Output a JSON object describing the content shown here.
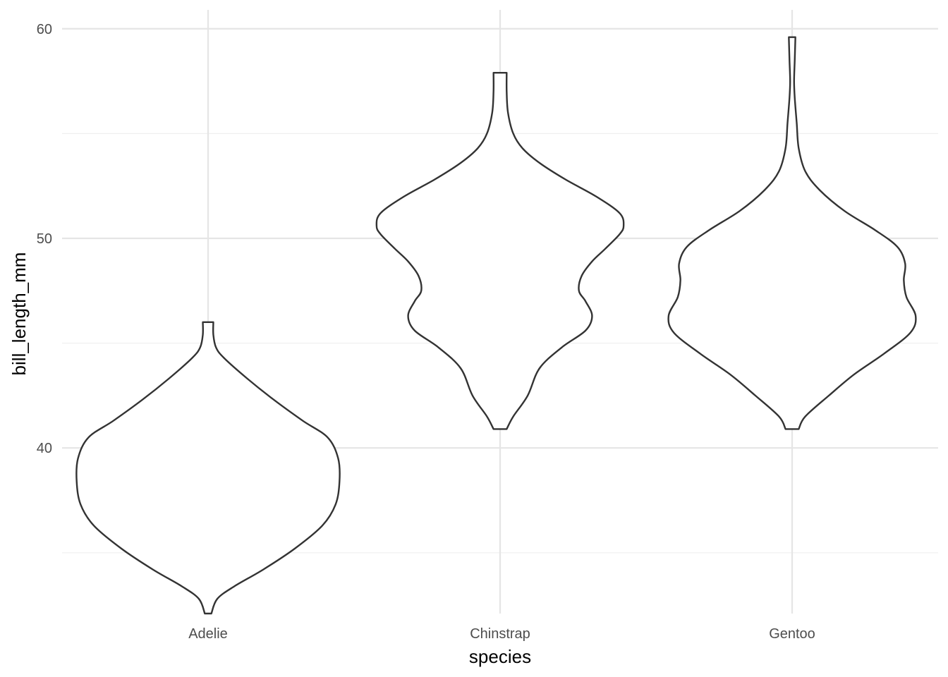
{
  "chart_data": {
    "type": "violin",
    "xlabel": "species",
    "ylabel": "bill_length_mm",
    "categories": [
      "Adelie",
      "Chinstrap",
      "Gentoo"
    ],
    "ylim": [
      32.1,
      60.9
    ],
    "yticks": [
      40,
      50,
      60
    ],
    "grid": true,
    "violins": [
      {
        "category": "Adelie",
        "density": [
          [
            32.1,
            0.025
          ],
          [
            32.8,
            0.07
          ],
          [
            33.4,
            0.2
          ],
          [
            34.2,
            0.42
          ],
          [
            35.2,
            0.66
          ],
          [
            36.3,
            0.87
          ],
          [
            37.3,
            0.97
          ],
          [
            38.4,
            1.0
          ],
          [
            39.5,
            0.99
          ],
          [
            40.5,
            0.91
          ],
          [
            41.3,
            0.72
          ],
          [
            42.3,
            0.5
          ],
          [
            43.3,
            0.3
          ],
          [
            44.3,
            0.12
          ],
          [
            44.8,
            0.06
          ],
          [
            45.4,
            0.04
          ],
          [
            46.0,
            0.04
          ]
        ]
      },
      {
        "category": "Chinstrap",
        "density": [
          [
            40.9,
            0.05
          ],
          [
            41.5,
            0.1
          ],
          [
            42.5,
            0.21
          ],
          [
            43.8,
            0.3
          ],
          [
            44.8,
            0.47
          ],
          [
            45.6,
            0.65
          ],
          [
            46.3,
            0.7
          ],
          [
            47.0,
            0.65
          ],
          [
            47.5,
            0.6
          ],
          [
            48.2,
            0.62
          ],
          [
            48.9,
            0.7
          ],
          [
            49.5,
            0.8
          ],
          [
            50.2,
            0.91
          ],
          [
            50.6,
            0.94
          ],
          [
            51.2,
            0.91
          ],
          [
            52.0,
            0.73
          ],
          [
            52.8,
            0.5
          ],
          [
            53.6,
            0.3
          ],
          [
            54.3,
            0.17
          ],
          [
            55.0,
            0.1
          ],
          [
            56.0,
            0.06
          ],
          [
            57.0,
            0.05
          ],
          [
            57.9,
            0.05
          ]
        ]
      },
      {
        "category": "Gentoo",
        "density": [
          [
            40.9,
            0.05
          ],
          [
            41.5,
            0.1
          ],
          [
            42.5,
            0.28
          ],
          [
            43.5,
            0.47
          ],
          [
            44.5,
            0.7
          ],
          [
            45.5,
            0.9
          ],
          [
            46.3,
            0.94
          ],
          [
            47.2,
            0.87
          ],
          [
            48.0,
            0.85
          ],
          [
            48.8,
            0.86
          ],
          [
            49.6,
            0.8
          ],
          [
            50.4,
            0.63
          ],
          [
            51.3,
            0.4
          ],
          [
            52.3,
            0.21
          ],
          [
            53.2,
            0.1
          ],
          [
            54.3,
            0.05
          ],
          [
            55.5,
            0.035
          ],
          [
            56.7,
            0.02
          ],
          [
            57.5,
            0.015
          ],
          [
            58.5,
            0.02
          ],
          [
            59.6,
            0.025
          ]
        ]
      }
    ]
  }
}
